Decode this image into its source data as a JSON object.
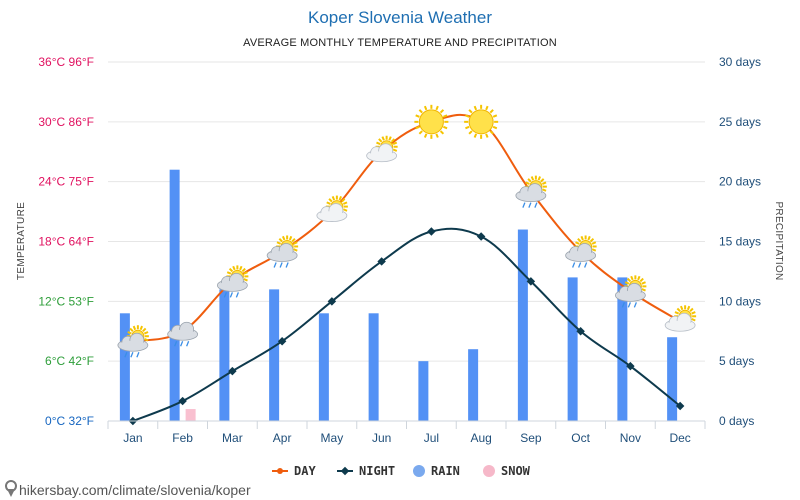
{
  "chart_data": {
    "type": "line",
    "title": "Koper Slovenia Weather",
    "subtitle": "AVERAGE MONTHLY TEMPERATURE AND PRECIPITATION",
    "ylabel_left": "TEMPERATURE",
    "ylabel_right": "PRECIPITATION",
    "categories": [
      "Jan",
      "Feb",
      "Mar",
      "Apr",
      "May",
      "Jun",
      "Jul",
      "Aug",
      "Sep",
      "Oct",
      "Nov",
      "Dec"
    ],
    "y_left_ticks": [
      {
        "value": 0,
        "label": "0°C 32°F",
        "color": "#1565c0"
      },
      {
        "value": 6,
        "label": "6°C 42°F",
        "color": "#2e9e3a"
      },
      {
        "value": 12,
        "label": "12°C 53°F",
        "color": "#2e9e3a"
      },
      {
        "value": 18,
        "label": "18°C 64°F",
        "color": "#e0115f"
      },
      {
        "value": 24,
        "label": "24°C 75°F",
        "color": "#e0115f"
      },
      {
        "value": 30,
        "label": "30°C 86°F",
        "color": "#e0115f"
      },
      {
        "value": 36,
        "label": "36°C 96°F",
        "color": "#e0115f"
      }
    ],
    "y_right_ticks": [
      {
        "value": 0,
        "label": "0 days"
      },
      {
        "value": 5,
        "label": "5 days"
      },
      {
        "value": 10,
        "label": "10 days"
      },
      {
        "value": 15,
        "label": "15 days"
      },
      {
        "value": 20,
        "label": "20 days"
      },
      {
        "value": 25,
        "label": "25 days"
      },
      {
        "value": 30,
        "label": "30 days"
      }
    ],
    "ylim_left": [
      0,
      36
    ],
    "ylim_right": [
      0,
      30
    ],
    "series": [
      {
        "name": "DAY",
        "kind": "line",
        "axis": "left",
        "color": "#ef5d0e",
        "values": [
          8,
          9,
          14,
          17,
          21,
          27,
          30,
          30,
          23,
          17,
          13,
          10
        ]
      },
      {
        "name": "NIGHT",
        "kind": "line",
        "axis": "left",
        "color": "#0e3a4d",
        "values": [
          0,
          2,
          5,
          8,
          12,
          16,
          19,
          18.5,
          14,
          9,
          5.5,
          1.5
        ]
      },
      {
        "name": "RAIN",
        "kind": "bar",
        "axis": "right",
        "color": "#5391f5",
        "legend_color": "#7aa9ee",
        "values": [
          9,
          21,
          11,
          11,
          9,
          9,
          5,
          6,
          16,
          12,
          12,
          7
        ]
      },
      {
        "name": "SNOW",
        "kind": "bar",
        "axis": "right",
        "color": "#f9c0d0",
        "legend_color": "#f6b8c9",
        "values": [
          0,
          1,
          0,
          0,
          0,
          0,
          0,
          0,
          0,
          0,
          0,
          0
        ]
      }
    ],
    "weather_icons": [
      "cloud-sun-rain-icon",
      "cloud-rain-icon",
      "cloud-sun-rain-icon",
      "cloud-sun-rain-icon",
      "cloud-sun-icon",
      "cloud-sun-icon",
      "sun-icon",
      "sun-icon",
      "cloud-sun-rain-icon",
      "cloud-sun-rain-icon",
      "cloud-sun-rain-icon",
      "cloud-sun-icon"
    ],
    "legend": [
      {
        "label": "DAY",
        "marker": "line-dot",
        "color": "#ef5d0e"
      },
      {
        "label": "NIGHT",
        "marker": "line-diamond",
        "color": "#0e3a4d"
      },
      {
        "label": "RAIN",
        "marker": "circle",
        "color": "#7aa9ee"
      },
      {
        "label": "SNOW",
        "marker": "circle",
        "color": "#f6b8c9"
      }
    ],
    "source": "hikersbay.com/climate/slovenia/koper",
    "colors": {
      "title": "#1f6fb2",
      "right_axis": "#1f4e79",
      "grid": "#e6e6e6"
    }
  }
}
